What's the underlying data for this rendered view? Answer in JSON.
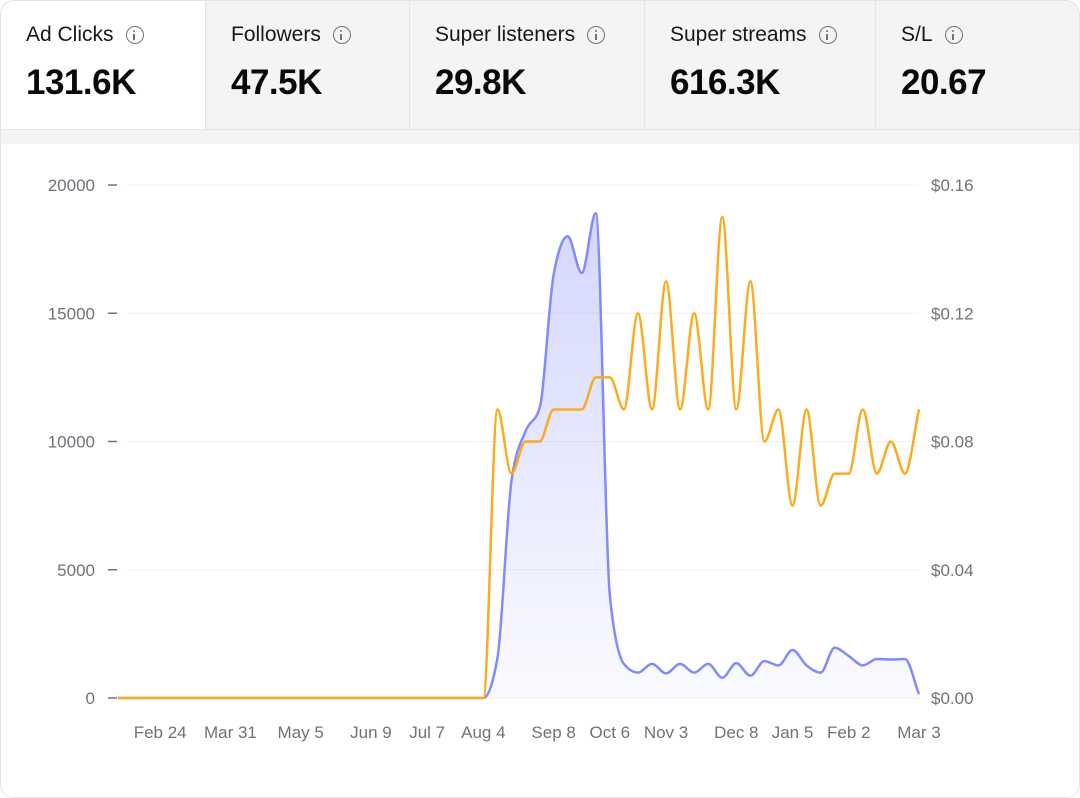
{
  "tabs": [
    {
      "label": "Ad Clicks",
      "value": "131.6K",
      "icon": "info-icon",
      "active": true
    },
    {
      "label": "Followers",
      "value": "47.5K",
      "icon": "info-icon"
    },
    {
      "label": "Super listeners",
      "value": "29.8K",
      "icon": "info-icon"
    },
    {
      "label": "Super streams",
      "value": "616.3K",
      "icon": "info-icon"
    },
    {
      "label": "S/L",
      "value": "20.67",
      "icon": "info-icon"
    }
  ],
  "colors": {
    "series1": "#818cf8",
    "series2": "#fbab1e",
    "grid": "#f0f0f2"
  },
  "chart_data": {
    "type": "line",
    "grid": true,
    "left_axis": {
      "ticks": [
        0,
        5000,
        10000,
        15000,
        20000
      ],
      "labels": [
        "0",
        "5000",
        "10000",
        "15000",
        "20000"
      ],
      "range": [
        0,
        20000
      ]
    },
    "right_axis": {
      "ticks": [
        0,
        0.04,
        0.08,
        0.12,
        0.16
      ],
      "labels": [
        "$0.00",
        "$0.04",
        "$0.08",
        "$0.12",
        "$0.16"
      ],
      "range": [
        0,
        0.16
      ]
    },
    "x_labels": [
      {
        "label": "Feb 24",
        "index": 3
      },
      {
        "label": "Mar 31",
        "index": 8
      },
      {
        "label": "May 5",
        "index": 13
      },
      {
        "label": "Jun 9",
        "index": 18
      },
      {
        "label": "Jul 7",
        "index": 22
      },
      {
        "label": "Aug 4",
        "index": 26
      },
      {
        "label": "Sep 8",
        "index": 31
      },
      {
        "label": "Oct 6",
        "index": 35
      },
      {
        "label": "Nov 3",
        "index": 39
      },
      {
        "label": "Dec 8",
        "index": 44
      },
      {
        "label": "Jan 5",
        "index": 48
      },
      {
        "label": "Feb 2",
        "index": 52
      },
      {
        "label": "Mar 3",
        "index": 57
      }
    ],
    "series": [
      {
        "axis": "left",
        "area": true,
        "values": [
          0,
          0,
          0,
          0,
          0,
          0,
          0,
          0,
          0,
          0,
          0,
          0,
          0,
          0,
          0,
          0,
          0,
          0,
          0,
          0,
          0,
          0,
          0,
          0,
          0,
          0,
          0,
          1560,
          8460,
          10400,
          11300,
          16500,
          18000,
          16570,
          18900,
          4000,
          1330,
          990,
          1330,
          960,
          1330,
          990,
          1330,
          790,
          1360,
          870,
          1440,
          1270,
          1870,
          1270,
          990,
          1960,
          1640,
          1270,
          1520,
          1500,
          1520,
          150
        ]
      },
      {
        "axis": "right",
        "area": false,
        "values": [
          0,
          0,
          0,
          0,
          0,
          0,
          0,
          0,
          0,
          0,
          0,
          0,
          0,
          0,
          0,
          0,
          0,
          0,
          0,
          0,
          0,
          0,
          0,
          0,
          0,
          0,
          0,
          0.09,
          0.07,
          0.08,
          0.08,
          0.09,
          0.09,
          0.09,
          0.1,
          0.1,
          0.09,
          0.12,
          0.09,
          0.13,
          0.09,
          0.12,
          0.09,
          0.15,
          0.09,
          0.13,
          0.08,
          0.09,
          0.06,
          0.09,
          0.06,
          0.07,
          0.07,
          0.09,
          0.07,
          0.08,
          0.07,
          0.09
        ]
      }
    ]
  }
}
